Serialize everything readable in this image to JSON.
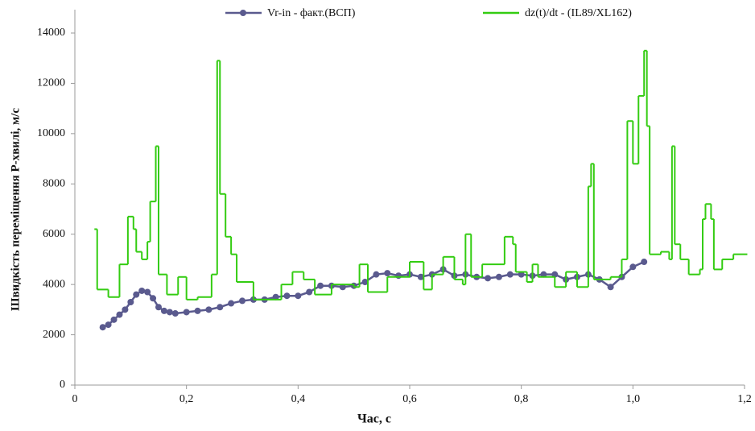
{
  "chart_data": {
    "type": "line",
    "x_label": "Час, с",
    "y_label": "Швидкість переміщення P-хвилі, м/с",
    "xlim": [
      0,
      1.2
    ],
    "xticks": [
      0,
      {
        "value": 0.2,
        "label": "0,2"
      },
      {
        "value": 0.4,
        "label": "0,4"
      },
      {
        "value": 0.6,
        "label": "0,6"
      },
      {
        "value": 0.8,
        "label": "0,8"
      },
      {
        "value": 1.0,
        "label": "1,0"
      },
      {
        "value": 1.2,
        "label": "1,2"
      }
    ],
    "ylim": [
      0,
      14000
    ],
    "yticks": [
      0,
      2000,
      4000,
      6000,
      8000,
      10000,
      12000,
      14000
    ],
    "grid": false,
    "legend": "top",
    "series": [
      {
        "name": "Vr-in - факт.(ВСП)",
        "color": "#5a5a8e",
        "markers": true,
        "step": false,
        "x": [
          0.05,
          0.06,
          0.07,
          0.08,
          0.09,
          0.1,
          0.11,
          0.12,
          0.13,
          0.14,
          0.15,
          0.16,
          0.17,
          0.18,
          0.2,
          0.22,
          0.24,
          0.26,
          0.28,
          0.3,
          0.32,
          0.34,
          0.36,
          0.38,
          0.4,
          0.42,
          0.44,
          0.46,
          0.48,
          0.5,
          0.52,
          0.54,
          0.56,
          0.58,
          0.6,
          0.62,
          0.64,
          0.66,
          0.68,
          0.7,
          0.72,
          0.74,
          0.76,
          0.78,
          0.8,
          0.82,
          0.84,
          0.86,
          0.88,
          0.9,
          0.92,
          0.94,
          0.96,
          0.98,
          1.0,
          1.02
        ],
        "values": [
          2300,
          2400,
          2600,
          2800,
          3000,
          3300,
          3600,
          3750,
          3700,
          3450,
          3100,
          2950,
          2900,
          2850,
          2900,
          2950,
          3000,
          3100,
          3250,
          3350,
          3400,
          3400,
          3500,
          3550,
          3550,
          3700,
          3950,
          3950,
          3900,
          3950,
          4100,
          4400,
          4450,
          4350,
          4400,
          4300,
          4400,
          4600,
          4350,
          4400,
          4300,
          4250,
          4300,
          4400,
          4400,
          4350,
          4400,
          4400,
          4200,
          4300,
          4400,
          4200,
          3900,
          4300,
          4700,
          4900
        ]
      },
      {
        "name": "dz(t)/dt - (IL89/XL162)",
        "color": "#33cc11",
        "markers": false,
        "step": true,
        "x": [
          0.035,
          0.04,
          0.06,
          0.08,
          0.095,
          0.105,
          0.11,
          0.12,
          0.13,
          0.135,
          0.145,
          0.15,
          0.165,
          0.185,
          0.2,
          0.22,
          0.245,
          0.255,
          0.26,
          0.27,
          0.28,
          0.29,
          0.32,
          0.37,
          0.39,
          0.41,
          0.43,
          0.46,
          0.5,
          0.51,
          0.525,
          0.56,
          0.6,
          0.625,
          0.64,
          0.66,
          0.68,
          0.695,
          0.7,
          0.71,
          0.73,
          0.77,
          0.785,
          0.79,
          0.81,
          0.82,
          0.83,
          0.86,
          0.88,
          0.9,
          0.92,
          0.925,
          0.93,
          0.96,
          0.98,
          0.99,
          1.0,
          1.01,
          1.02,
          1.025,
          1.03,
          1.05,
          1.065,
          1.07,
          1.075,
          1.085,
          1.1,
          1.12,
          1.125,
          1.13,
          1.14,
          1.145,
          1.16,
          1.18,
          1.205
        ],
        "values": [
          6200,
          3800,
          3500,
          4800,
          6700,
          6200,
          5300,
          5000,
          5700,
          7300,
          9500,
          4400,
          3600,
          4300,
          3400,
          3500,
          4400,
          12900,
          7600,
          5900,
          5200,
          4100,
          3400,
          4000,
          4500,
          4200,
          3600,
          4000,
          3900,
          4800,
          3700,
          4300,
          4900,
          3800,
          4400,
          5100,
          4200,
          4000,
          6000,
          4300,
          4800,
          5900,
          5600,
          4500,
          4100,
          4800,
          4300,
          3900,
          4500,
          3900,
          7900,
          8800,
          4200,
          4300,
          5000,
          10500,
          8800,
          11500,
          13300,
          10300,
          5200,
          5300,
          5000,
          9500,
          5600,
          5000,
          4400,
          4600,
          6600,
          7200,
          6600,
          4600,
          5000,
          5200,
          5200
        ]
      }
    ]
  }
}
